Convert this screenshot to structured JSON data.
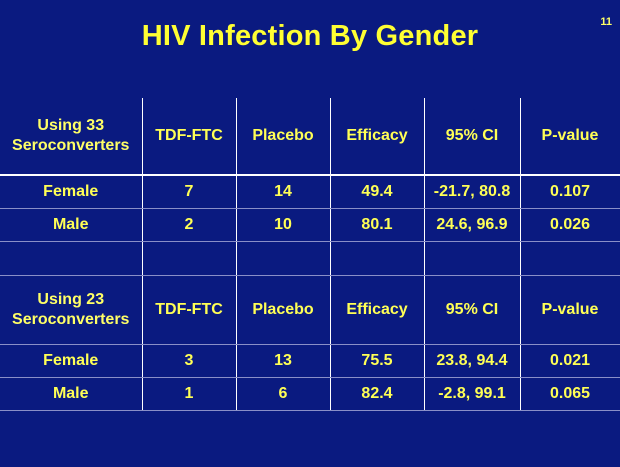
{
  "slide": {
    "number": "11",
    "title": "HIV Infection By Gender"
  },
  "columns": [
    "TDF-FTC",
    "Placebo",
    "Efficacy",
    "95% CI",
    "P-value"
  ],
  "groups": [
    {
      "label_line1": "Using 33",
      "label_line2": "Seroconverters",
      "rows": [
        {
          "label": "Female",
          "tdf_ftc": "7",
          "placebo": "14",
          "efficacy": "49.4",
          "ci": "-21.7, 80.8",
          "p_value": "0.107"
        },
        {
          "label": "Male",
          "tdf_ftc": "2",
          "placebo": "10",
          "efficacy": "80.1",
          "ci": "24.6, 96.9",
          "p_value": "0.026"
        }
      ]
    },
    {
      "label_line1": "Using 23",
      "label_line2": "Seroconverters",
      "rows": [
        {
          "label": "Female",
          "tdf_ftc": "3",
          "placebo": "13",
          "efficacy": "75.5",
          "ci": "23.8, 94.4",
          "p_value": "0.021"
        },
        {
          "label": "Male",
          "tdf_ftc": "1",
          "placebo": "6",
          "efficacy": "82.4",
          "ci": "-2.8, 99.1",
          "p_value": "0.065"
        }
      ]
    }
  ],
  "colors": {
    "background": "#0a1a80",
    "text": "#ffff55",
    "grid": "#ffffff"
  }
}
